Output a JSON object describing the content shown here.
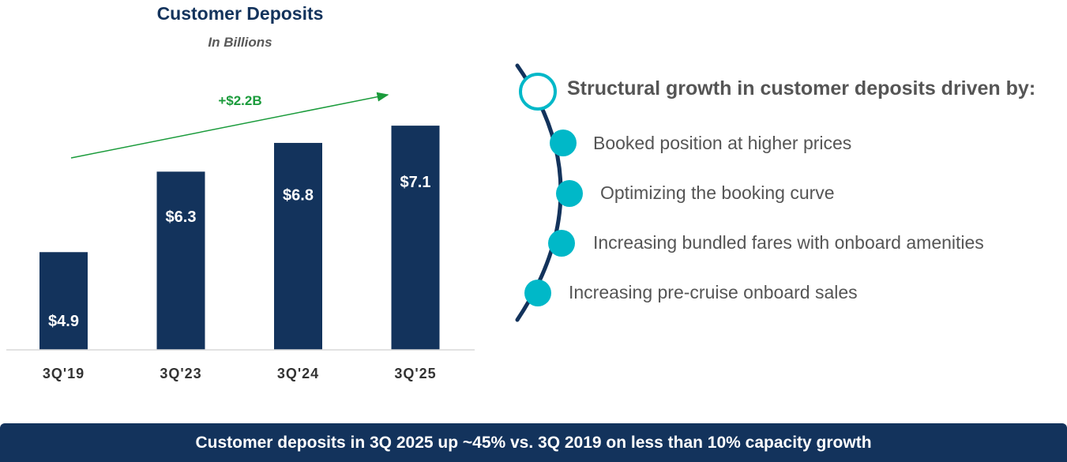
{
  "chart_data": {
    "type": "bar",
    "title": "Customer Deposits",
    "subtitle": "In Billions",
    "categories": [
      "3Q'19",
      "3Q'23",
      "3Q'24",
      "3Q'25"
    ],
    "values": [
      4.9,
      6.3,
      6.8,
      7.1
    ],
    "data_labels": [
      "$4.9",
      "$6.3",
      "$6.8",
      "$7.1"
    ],
    "bar_color": "#13335c",
    "ylim": [
      3.2,
      7.5
    ],
    "annotation": {
      "text": "+$2.2B",
      "color": "#1a9b3b",
      "type": "trend-arrow"
    }
  },
  "drivers": {
    "heading": "Structural growth in customer deposits driven by:",
    "items": [
      "Booked position at higher prices",
      "Optimizing the booking curve",
      "Increasing bundled fares with onboard amenities",
      "Increasing pre-cruise onboard sales"
    ],
    "dot_color": "#00b8c8",
    "arc_color": "#13335c"
  },
  "footer": {
    "text": "Customer deposits in 3Q 2025 up ~45% vs. 3Q 2019 on less than 10% capacity growth"
  }
}
